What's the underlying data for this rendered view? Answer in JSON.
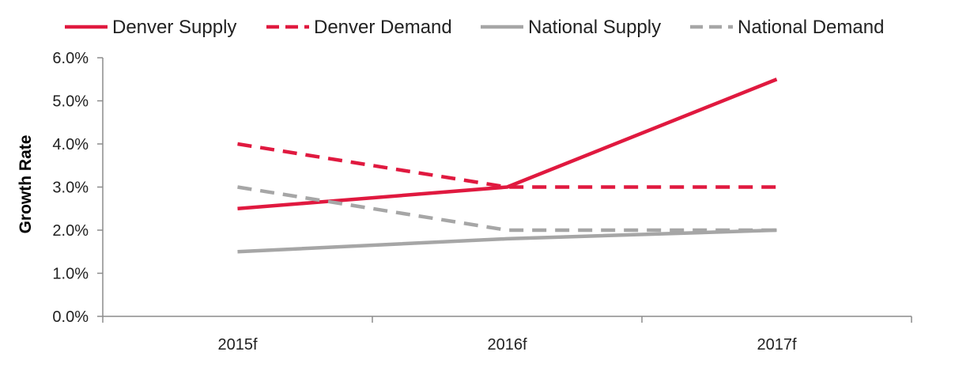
{
  "chart_data": {
    "type": "line",
    "title": "",
    "xlabel": "",
    "ylabel": "Growth Rate",
    "categories": [
      "2015f",
      "2016f",
      "2017f"
    ],
    "ylim": [
      0,
      6
    ],
    "y_ticks": [
      "0.0%",
      "1.0%",
      "2.0%",
      "3.0%",
      "4.0%",
      "5.0%",
      "6.0%"
    ],
    "grid": false,
    "legend_position": "top",
    "series": [
      {
        "name": "Denver Supply",
        "values": [
          2.5,
          3.0,
          5.5
        ],
        "color": "#e0193f",
        "dashed": false
      },
      {
        "name": "Denver Demand",
        "values": [
          4.0,
          3.0,
          3.0
        ],
        "color": "#e0193f",
        "dashed": true
      },
      {
        "name": "National Supply",
        "values": [
          1.5,
          1.8,
          2.0
        ],
        "color": "#a6a6a6",
        "dashed": false
      },
      {
        "name": "National Demand",
        "values": [
          3.0,
          2.0,
          2.0
        ],
        "color": "#a6a6a6",
        "dashed": true
      }
    ]
  }
}
